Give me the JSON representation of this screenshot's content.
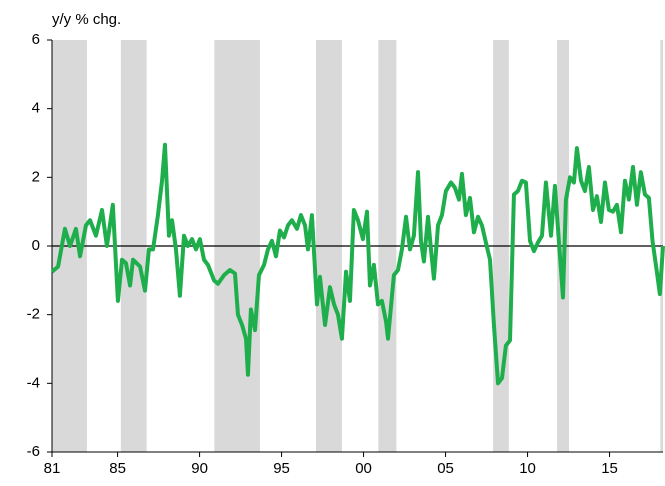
{
  "chart_data": {
    "type": "line",
    "y_axis_label": "y/y % chg.",
    "xlim": [
      1981,
      2018.26
    ],
    "xticks": [
      {
        "value": 1981,
        "label": "81"
      },
      {
        "value": 1985,
        "label": "85"
      },
      {
        "value": 1990,
        "label": "90"
      },
      {
        "value": 1995,
        "label": "95"
      },
      {
        "value": 2000,
        "label": "00"
      },
      {
        "value": 2005,
        "label": "05"
      },
      {
        "value": 2010,
        "label": "10"
      },
      {
        "value": 2015,
        "label": "15"
      }
    ],
    "ylim": [
      -6,
      6
    ],
    "yticks": [
      -6,
      -4,
      -2,
      0,
      2,
      4,
      6
    ],
    "shade_color": "#d9d9d9",
    "shaded_periods": [
      {
        "start": 1981,
        "end": 1983.13
      },
      {
        "start": 1985.2,
        "end": 1986.77
      },
      {
        "start": 1990.9,
        "end": 1993.68
      },
      {
        "start": 1997.1,
        "end": 1998.68
      },
      {
        "start": 1998.9,
        "end": 1998.9
      },
      {
        "start": 2000.9,
        "end": 2002.0
      },
      {
        "start": 2007.9,
        "end": 2008.86
      },
      {
        "start": 2011.8,
        "end": 2012.53
      },
      {
        "start": 2018.1,
        "end": 2018.26
      }
    ],
    "series": [
      {
        "color": "#1fae4c",
        "x": [
          1981.0,
          1981.37,
          1981.79,
          1982.1,
          1982.46,
          1982.71,
          1983.07,
          1983.32,
          1983.68,
          1984.05,
          1984.35,
          1984.71,
          1985.02,
          1985.27,
          1985.51,
          1985.76,
          1985.94,
          1986.37,
          1986.67,
          1986.91,
          1987.16,
          1987.46,
          1987.71,
          1987.89,
          1988.13,
          1988.32,
          1988.56,
          1988.8,
          1989.05,
          1989.29,
          1989.54,
          1989.78,
          1990.02,
          1990.27,
          1990.51,
          1990.88,
          1991.12,
          1991.49,
          1991.85,
          1992.16,
          1992.34,
          1992.59,
          1992.83,
          1992.95,
          1993.13,
          1993.38,
          1993.62,
          1993.93,
          1994.17,
          1994.41,
          1994.66,
          1994.9,
          1995.15,
          1995.39,
          1995.63,
          1995.94,
          1996.18,
          1996.43,
          1996.61,
          1996.85,
          1997.16,
          1997.34,
          1997.65,
          1997.95,
          1998.2,
          1998.44,
          1998.68,
          1998.93,
          1999.17,
          1999.41,
          1999.66,
          1999.96,
          2000.21,
          2000.39,
          2000.63,
          2000.88,
          2001.12,
          2001.37,
          2001.49,
          2001.85,
          2002.1,
          2002.34,
          2002.59,
          2002.83,
          2003.07,
          2003.32,
          2003.5,
          2003.68,
          2003.93,
          2004.11,
          2004.29,
          2004.54,
          2004.78,
          2005.02,
          2005.33,
          2005.57,
          2005.82,
          2006.0,
          2006.24,
          2006.49,
          2006.73,
          2006.98,
          2007.22,
          2007.46,
          2007.71,
          2007.95,
          2008.2,
          2008.44,
          2008.68,
          2008.93,
          2009.17,
          2009.41,
          2009.66,
          2009.9,
          2010.15,
          2010.39,
          2010.63,
          2010.88,
          2011.12,
          2011.43,
          2011.67,
          2011.91,
          2012.16,
          2012.34,
          2012.59,
          2012.83,
          2013.01,
          2013.26,
          2013.5,
          2013.74,
          2013.99,
          2014.23,
          2014.48,
          2014.72,
          2014.96,
          2015.21,
          2015.45,
          2015.7,
          2015.94,
          2016.18,
          2016.43,
          2016.67,
          2016.91,
          2017.16,
          2017.4,
          2017.62,
          2017.87,
          2018.07,
          2018.26
        ],
        "values": [
          -0.75,
          -0.6,
          0.5,
          0,
          0.5,
          -0.3,
          0.6,
          0.75,
          0.3,
          1.05,
          0,
          1.2,
          -1.6,
          -0.4,
          -0.5,
          -1.15,
          -0.4,
          -0.6,
          -1.3,
          -0.1,
          -0.1,
          0.9,
          1.9,
          2.95,
          0.3,
          0.75,
          -0.1,
          -1.45,
          0.3,
          0,
          0.2,
          -0.1,
          0.2,
          -0.4,
          -0.55,
          -1.0,
          -1.1,
          -0.85,
          -0.7,
          -0.8,
          -2.0,
          -2.3,
          -2.7,
          -3.75,
          -1.85,
          -2.45,
          -0.85,
          -0.55,
          -0.1,
          0.15,
          -0.3,
          0.45,
          0.25,
          0.6,
          0.75,
          0.5,
          0.9,
          0.6,
          -0.1,
          0.9,
          -1.7,
          -0.9,
          -2.3,
          -1.2,
          -1.7,
          -2.0,
          -2.7,
          -0.75,
          -1.6,
          1.05,
          0.75,
          0.2,
          1.0,
          -1.15,
          -0.55,
          -1.7,
          -1.6,
          -2.2,
          -2.7,
          -0.85,
          -0.7,
          -0.1,
          0.85,
          -0.1,
          0.3,
          2.15,
          0.15,
          -0.45,
          0.85,
          -0.1,
          -0.95,
          0.6,
          0.9,
          1.6,
          1.85,
          1.7,
          1.35,
          2.1,
          0.9,
          1.4,
          0.4,
          0.85,
          0.6,
          0.1,
          -0.4,
          -2.3,
          -4.0,
          -3.85,
          -2.9,
          -2.75,
          1.5,
          1.6,
          1.9,
          1.85,
          0.15,
          -0.15,
          0.1,
          0.3,
          1.85,
          0.3,
          1.75,
          0.15,
          -1.5,
          1.35,
          2.0,
          1.85,
          2.85,
          1.9,
          1.6,
          2.3,
          1.05,
          1.45,
          0.7,
          1.85,
          1.05,
          1.0,
          1.2,
          0.4,
          1.9,
          1.35,
          2.3,
          1.2,
          2.15,
          1.5,
          1.4,
          0.15,
          -0.7,
          -1.4,
          0
        ]
      }
    ]
  }
}
